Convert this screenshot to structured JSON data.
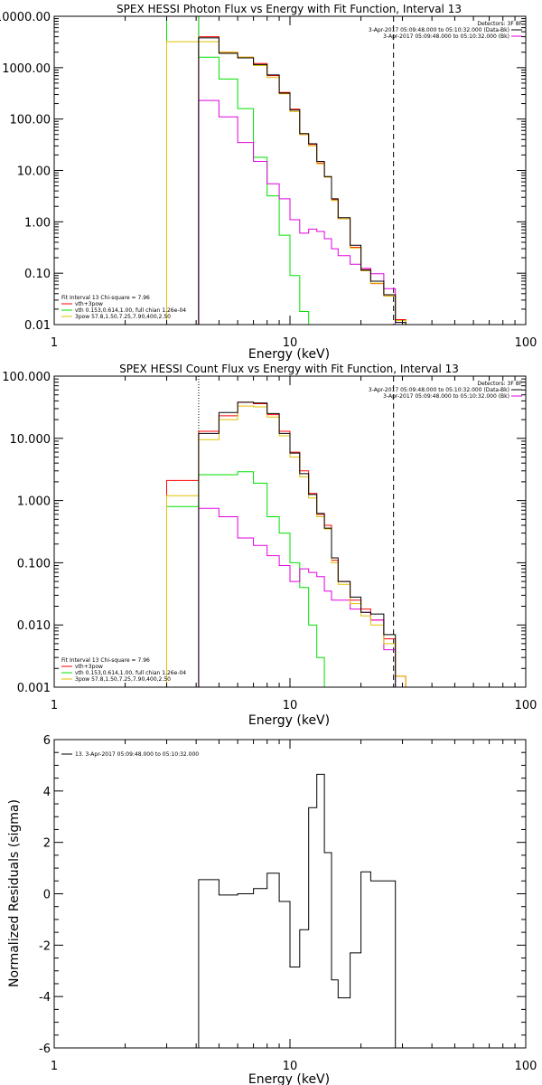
{
  "colors": {
    "total": "#000000",
    "sum": "#ff0000",
    "vth": "#00e000",
    "3pow": "#e000e0",
    "fit": "#e0c000"
  },
  "chart_data": [
    {
      "type": "line",
      "title": "SPEX HESSI Photon Flux vs Energy with Fit Function, Interval 13",
      "xlabel": "Energy (keV)",
      "ylabel": "",
      "xscale": "log",
      "yscale": "log",
      "xlim": [
        1,
        100
      ],
      "ylim": [
        0.01,
        10000
      ],
      "xticks": [
        {
          "v": 1,
          "label": "1"
        },
        {
          "v": 10,
          "label": "10"
        },
        {
          "v": 100,
          "label": "100"
        }
      ],
      "yticks": [
        {
          "v": 0.01,
          "label": "0.01"
        },
        {
          "v": 0.1,
          "label": "0.10"
        },
        {
          "v": 1,
          "label": "1.00"
        },
        {
          "v": 10,
          "label": "10.00"
        },
        {
          "v": 100,
          "label": "100.00"
        },
        {
          "v": 1000,
          "label": "1000.00"
        },
        {
          "v": 10000,
          "label": "10000.00"
        }
      ],
      "vlines": [
        {
          "x": 4.1,
          "style": "solid",
          "color": "3pow"
        },
        {
          "x": 27.5,
          "style": "dashed",
          "color": "total"
        }
      ],
      "legend_right": {
        "header": "Detectors: 3F 8F",
        "entries": [
          {
            "text": "3-Apr-2017 05:09:48.000 to 05:10:32.000 (Data-Bk)",
            "color": "total"
          },
          {
            "text": "3-Apr-2017 05:09:48.000 to 05:10:32.000 (Bk)",
            "color": "3pow"
          }
        ]
      },
      "legend_left": {
        "header": "Fit Interval 13   Chi-square = 7.96",
        "entries": [
          {
            "text": "vth+3pow",
            "color": "sum"
          },
          {
            "text": "vth 0.153,0.614,1.00, full chian 1.26e-04",
            "color": "vth"
          },
          {
            "text": "3pow 57.8,1.50,7.25,7.90,400,2.50",
            "color": "fit"
          }
        ]
      },
      "edges": [
        3.0,
        4.1,
        5.0,
        6.0,
        7.0,
        8.0,
        9.0,
        10.0,
        11.0,
        12.0,
        13.0,
        14.0,
        15.0,
        16.0,
        18.0,
        20.0,
        22.0,
        25.0,
        28.0,
        31.0
      ],
      "series": [
        {
          "name": "vth+3pow",
          "color": "sum",
          "values": [
            null,
            4000,
            2000,
            1600,
            1200,
            700,
            330,
            155,
            50,
            32,
            14,
            7.4,
            2.7,
            1.15,
            0.32,
            0.117,
            0.063,
            0.036,
            0.0125
          ]
        },
        {
          "name": "vth",
          "color": "vth",
          "values": [
            10000,
            1600,
            600,
            160,
            18,
            3.2,
            0.55,
            0.09,
            0.018,
            0.003,
            null,
            null,
            null,
            null,
            null,
            null,
            null,
            null,
            null
          ]
        },
        {
          "values": [
            null,
            230,
            110,
            35,
            15,
            5.5,
            2.8,
            1.1,
            0.6,
            0.72,
            0.65,
            0.47,
            0.3,
            0.22,
            0.15,
            0.125,
            0.098,
            0.05,
            null
          ],
          "color": "3pow"
        },
        {
          "name": "3pow",
          "color": "fit",
          "values": [
            3200,
            3200,
            2000,
            1600,
            1100,
            640,
            310,
            140,
            50,
            30,
            13.5,
            7.4,
            2.6,
            1.15,
            0.31,
            0.112,
            0.064,
            0.036,
            0.012
          ]
        },
        {
          "color": "total",
          "values": [
            null,
            3800,
            1900,
            1550,
            1150,
            720,
            320,
            150,
            52,
            33,
            15,
            7.6,
            2.8,
            1.2,
            0.35,
            0.115,
            0.07,
            0.038,
            0.011
          ]
        }
      ]
    },
    {
      "type": "line",
      "title": "SPEX HESSI Count Flux vs Energy with Fit Function, Interval 13",
      "xlabel": "Energy (keV)",
      "ylabel": "",
      "xscale": "log",
      "yscale": "log",
      "xlim": [
        1,
        100
      ],
      "ylim": [
        0.001,
        100
      ],
      "xticks": [
        {
          "v": 1,
          "label": "1"
        },
        {
          "v": 10,
          "label": "10"
        },
        {
          "v": 100,
          "label": "100"
        }
      ],
      "yticks": [
        {
          "v": 0.001,
          "label": "0.001"
        },
        {
          "v": 0.01,
          "label": "0.010"
        },
        {
          "v": 0.1,
          "label": "0.100"
        },
        {
          "v": 1,
          "label": "1.000"
        },
        {
          "v": 10,
          "label": "10.000"
        },
        {
          "v": 100,
          "label": "100.000"
        }
      ],
      "vlines": [
        {
          "x": 4.1,
          "style": "dotted",
          "color": "total"
        },
        {
          "x": 27.5,
          "style": "dashed",
          "color": "total"
        }
      ],
      "legend_right": {
        "header": "Detectors: 3F 8F",
        "entries": [
          {
            "text": "3-Apr-2017 05:09:48.000 to 05:10:32.000 (Data-Bk)",
            "color": "total"
          },
          {
            "text": "3-Apr-2017 05:09:48.000 to 05:10:32.000 (Bk)",
            "color": "3pow"
          }
        ]
      },
      "legend_left": {
        "header": "Fit Interval 13   Chi-square = 7.96",
        "entries": [
          {
            "text": "vth+3pow",
            "color": "sum"
          },
          {
            "text": "vth 0.153,0.614,1.00, full chian 1.26e-04",
            "color": "vth"
          },
          {
            "text": "3pow 57.8,1.50,7.25,7.90,400,2.50",
            "color": "fit"
          }
        ]
      },
      "edges": [
        3.0,
        4.1,
        5.0,
        6.0,
        7.0,
        8.0,
        9.0,
        10.0,
        11.0,
        12.0,
        13.0,
        14.0,
        15.0,
        16.0,
        18.0,
        20.0,
        22.0,
        25.0,
        28.0,
        31.0
      ],
      "series": [
        {
          "name": "vth+3pow",
          "color": "sum",
          "values": [
            2.1,
            13,
            23,
            38,
            36,
            24,
            13,
            6,
            3,
            1.3,
            0.6,
            0.4,
            0.11,
            0.05,
            0.025,
            0.018,
            0.012,
            0.006,
            0.0015
          ]
        },
        {
          "name": "vth",
          "color": "vth",
          "values": [
            0.8,
            2.6,
            2.6,
            2.9,
            1.9,
            0.55,
            0.3,
            0.1,
            0.04,
            0.01,
            0.003,
            null,
            null,
            null,
            null,
            null,
            null,
            null,
            null
          ]
        },
        {
          "values": [
            null,
            0.75,
            0.55,
            0.25,
            0.19,
            0.13,
            0.09,
            0.05,
            0.08,
            0.07,
            0.06,
            0.035,
            0.025,
            0.025,
            0.018,
            0.016,
            0.012,
            0.004,
            null
          ],
          "color": "3pow"
        },
        {
          "name": "3pow",
          "color": "fit",
          "values": [
            1.2,
            9.5,
            20,
            33,
            32,
            22,
            11,
            5,
            2.4,
            1.1,
            0.55,
            0.35,
            0.1,
            0.045,
            0.022,
            0.014,
            0.01,
            0.005,
            0.0015
          ]
        },
        {
          "color": "total",
          "values": [
            null,
            12,
            26,
            38,
            37,
            25,
            12,
            5.8,
            2.7,
            1.25,
            0.62,
            0.36,
            0.12,
            0.05,
            0.028,
            0.016,
            0.015,
            0.007,
            0.001
          ]
        }
      ]
    },
    {
      "type": "line",
      "title": "",
      "xlabel": "Energy (keV)",
      "ylabel": "Normalized Residuals (sigma)",
      "xscale": "log",
      "yscale": "linear",
      "xlim": [
        1,
        100
      ],
      "ylim": [
        -6,
        6
      ],
      "xticks": [
        {
          "v": 1,
          "label": "1"
        },
        {
          "v": 10,
          "label": "10"
        },
        {
          "v": 100,
          "label": "100"
        }
      ],
      "yticks": [
        {
          "v": -6,
          "label": "-6"
        },
        {
          "v": -4,
          "label": "-4"
        },
        {
          "v": -2,
          "label": "-2"
        },
        {
          "v": 0,
          "label": "0"
        },
        {
          "v": 2,
          "label": "2"
        },
        {
          "v": 4,
          "label": "4"
        },
        {
          "v": 6,
          "label": "6"
        }
      ],
      "legend_left": {
        "header": "",
        "entries": [
          {
            "text": "13.  3-Apr-2017 05:09:48.000 to 05:10:32.000",
            "color": "total"
          }
        ]
      },
      "edges": [
        4.1,
        5.0,
        6.0,
        7.0,
        8.0,
        9.0,
        10.0,
        11.0,
        12.0,
        13.0,
        14.0,
        15.0,
        16.0,
        18.0,
        20.0,
        22.0,
        25.0,
        28.0
      ],
      "series": [
        {
          "color": "total",
          "drop_to_bottom": true,
          "values": [
            0.55,
            -0.05,
            0.0,
            0.2,
            0.8,
            -0.3,
            -2.85,
            -1.4,
            3.35,
            4.65,
            1.6,
            -3.35,
            -4.05,
            -2.3,
            0.85,
            0.5,
            0.5
          ]
        }
      ]
    }
  ]
}
